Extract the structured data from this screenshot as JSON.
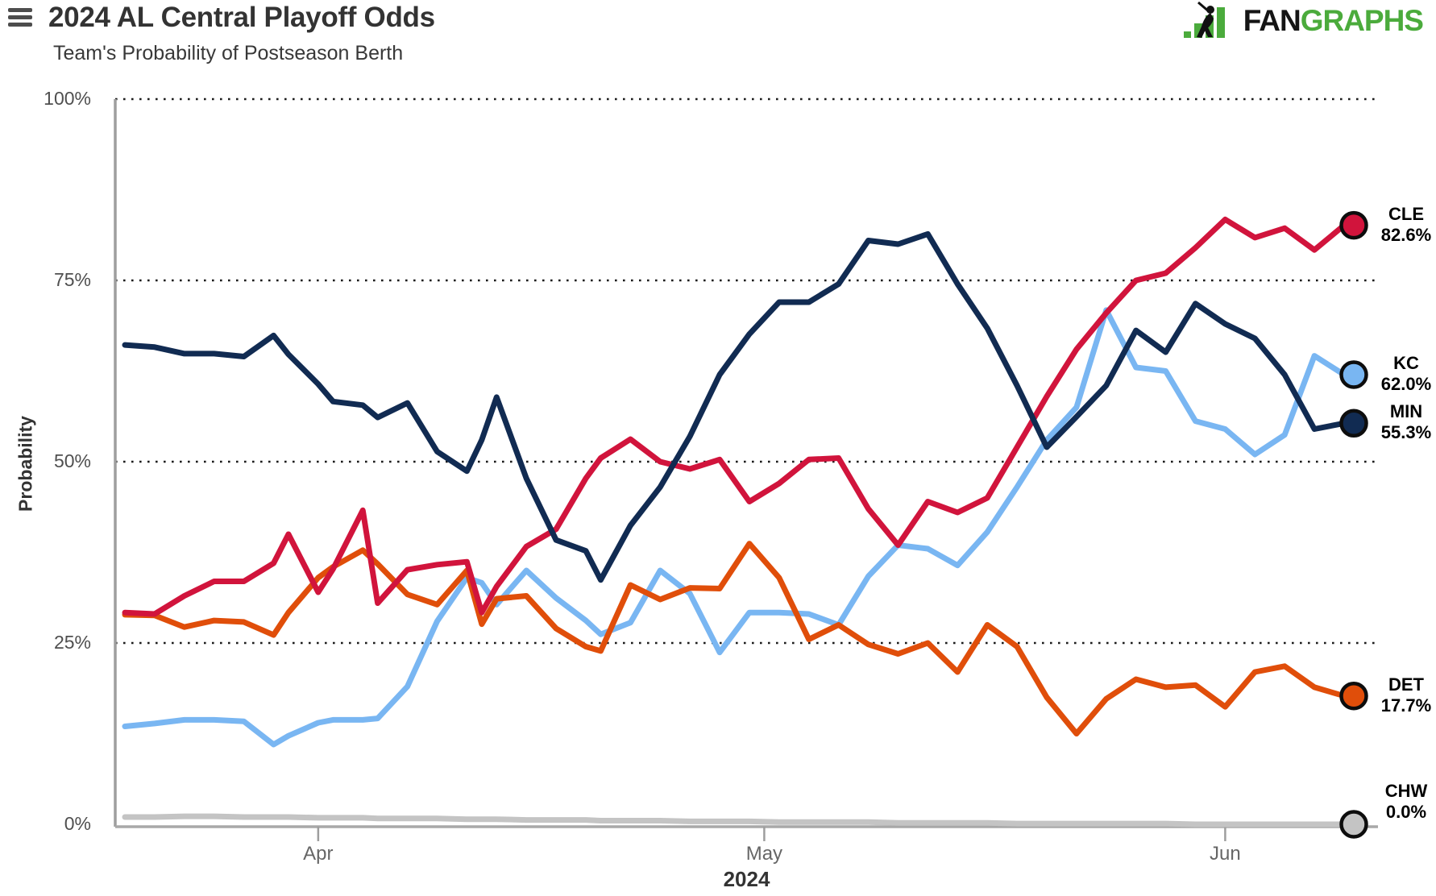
{
  "header": {
    "title": "2024 AL Central Playoff Odds",
    "subtitle": "Team's Probability of Postseason Berth",
    "logo": {
      "fan": "FAN",
      "graphs": "GRAPHS",
      "green": "#4bab3c",
      "black": "#151515"
    }
  },
  "chart_data": {
    "type": "line",
    "title": "2024 AL Central Playoff Odds",
    "subtitle": "Team's Probability of Postseason Berth",
    "xlabel": "2024",
    "ylabel": "Probability",
    "ylim": [
      0,
      100
    ],
    "yticks": [
      0,
      25,
      50,
      75,
      100
    ],
    "ytick_labels": [
      "0%",
      "25%",
      "50%",
      "75%",
      "100%"
    ],
    "grid": "horizontal-dotted",
    "legend_position": "right-of-line-ends",
    "x_days": [
      0,
      2,
      4,
      6,
      8,
      10,
      11,
      13,
      14,
      16,
      17,
      19,
      21,
      23,
      24,
      25,
      27,
      29,
      31,
      32,
      34,
      36,
      38,
      40,
      42,
      44,
      46,
      48,
      50,
      52,
      54,
      56,
      58,
      60,
      62,
      64,
      66,
      68,
      70,
      72,
      74,
      76,
      78,
      80,
      82
    ],
    "x_dates": [
      "Mar 19",
      "Mar 21",
      "Mar 23",
      "Mar 25",
      "Mar 27",
      "Mar 29",
      "Mar 30",
      "Apr 1",
      "Apr 2",
      "Apr 4",
      "Apr 5",
      "Apr 7",
      "Apr 9",
      "Apr 11",
      "Apr 12",
      "Apr 13",
      "Apr 15",
      "Apr 17",
      "Apr 19",
      "Apr 20",
      "Apr 22",
      "Apr 24",
      "Apr 26",
      "Apr 28",
      "Apr 30",
      "May 2",
      "May 4",
      "May 6",
      "May 8",
      "May 10",
      "May 12",
      "May 14",
      "May 16",
      "May 18",
      "May 20",
      "May 22",
      "May 24",
      "May 26",
      "May 28",
      "May 30",
      "Jun 1",
      "Jun 3",
      "Jun 5",
      "Jun 7",
      "Jun 9"
    ],
    "xticks": [
      {
        "label": "Apr",
        "day": 13
      },
      {
        "label": "May",
        "day": 43
      },
      {
        "label": "Jun",
        "day": 74
      }
    ],
    "series": [
      {
        "name": "CHW",
        "final_label": "0.0%",
        "color": "#c4c4c4",
        "values": [
          1.0,
          1.0,
          1.1,
          1.1,
          1.0,
          1.0,
          1.0,
          0.9,
          0.9,
          0.9,
          0.8,
          0.8,
          0.8,
          0.7,
          0.7,
          0.7,
          0.6,
          0.6,
          0.6,
          0.5,
          0.5,
          0.5,
          0.4,
          0.4,
          0.4,
          0.3,
          0.3,
          0.3,
          0.3,
          0.2,
          0.2,
          0.2,
          0.2,
          0.1,
          0.1,
          0.1,
          0.1,
          0.1,
          0.1,
          0.0,
          0.0,
          0.0,
          0.0,
          0.0,
          0.0
        ]
      },
      {
        "name": "KC",
        "final_label": "62.0%",
        "color": "#79b6f2",
        "values": [
          13.5,
          13.9,
          14.4,
          14.4,
          14.2,
          11.0,
          12.2,
          14.0,
          14.4,
          14.4,
          14.6,
          19.0,
          28.0,
          34.0,
          33.3,
          30.3,
          35.0,
          31.2,
          28.1,
          26.2,
          27.8,
          35.0,
          31.8,
          23.7,
          29.2,
          29.2,
          29.0,
          27.5,
          34.2,
          38.5,
          38.0,
          35.7,
          40.3,
          46.5,
          53.0,
          57.5,
          70.9,
          63.0,
          62.5,
          55.6,
          54.5,
          51.0,
          53.7,
          64.6,
          62.0
        ]
      },
      {
        "name": "DET",
        "final_label": "17.7%",
        "color": "#e04e0a",
        "values": [
          28.9,
          28.8,
          27.2,
          28.1,
          27.9,
          26.1,
          29.2,
          34.0,
          35.5,
          37.8,
          35.9,
          31.7,
          30.3,
          35.0,
          27.6,
          31.1,
          31.5,
          27.0,
          24.5,
          23.9,
          33.0,
          31.0,
          32.6,
          32.5,
          38.7,
          34.0,
          25.5,
          27.5,
          24.8,
          23.5,
          25.0,
          21.0,
          27.5,
          24.5,
          17.5,
          12.5,
          17.3,
          20.0,
          18.9,
          19.2,
          16.2,
          21.0,
          21.8,
          18.9,
          17.7
        ]
      },
      {
        "name": "CLE",
        "final_label": "82.6%",
        "color": "#d1143c",
        "values": [
          29.2,
          29.0,
          31.5,
          33.5,
          33.5,
          36.0,
          40.0,
          32.0,
          35.2,
          43.3,
          30.5,
          35.1,
          35.8,
          36.2,
          29.2,
          32.8,
          38.3,
          40.7,
          47.7,
          50.5,
          53.1,
          50.0,
          49.0,
          50.3,
          44.5,
          47.0,
          50.3,
          50.5,
          43.5,
          38.5,
          44.5,
          43.0,
          45.0,
          52.0,
          59.0,
          65.5,
          70.5,
          75.0,
          76.0,
          79.5,
          83.4,
          80.9,
          82.2,
          79.2,
          82.6
        ]
      },
      {
        "name": "MIN",
        "final_label": "55.3%",
        "color": "#112b52",
        "values": [
          66.1,
          65.8,
          64.9,
          64.9,
          64.5,
          67.4,
          64.8,
          60.7,
          58.3,
          57.8,
          56.1,
          58.1,
          51.4,
          48.7,
          53.0,
          58.9,
          47.7,
          39.2,
          37.7,
          33.7,
          41.2,
          46.5,
          53.5,
          62.0,
          67.6,
          72.0,
          72.0,
          74.5,
          80.5,
          80.0,
          81.4,
          74.5,
          68.4,
          60.5,
          52.0,
          56.2,
          60.5,
          68.1,
          65.1,
          71.8,
          69.0,
          67.0,
          62.0,
          54.5,
          55.3
        ]
      }
    ]
  }
}
